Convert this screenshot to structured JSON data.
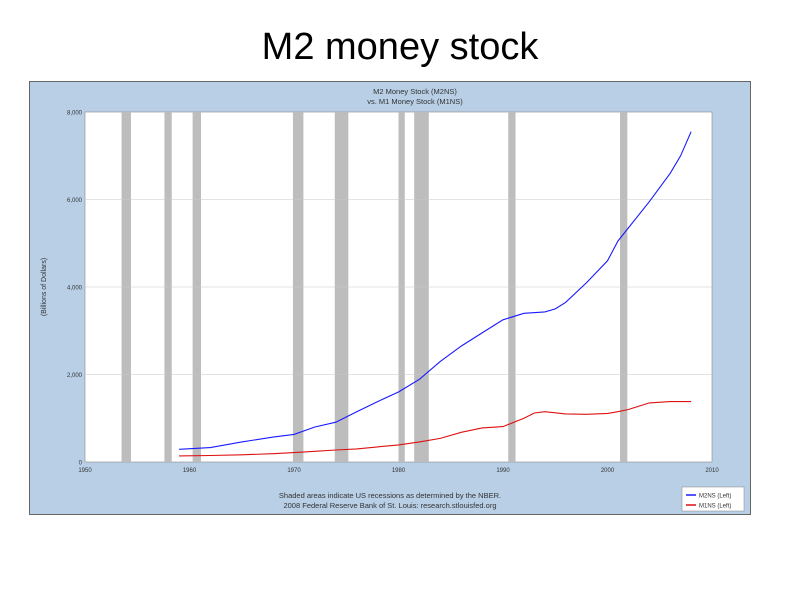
{
  "slide": {
    "title": "M2 money stock"
  },
  "chart_data": {
    "type": "line",
    "title": "M2 Money Stock (M2NS)",
    "subtitle": "vs. M1 Money Stock (M1NS)",
    "ylabel": "(Billions of Dollars)",
    "xlim": [
      1950,
      2010
    ],
    "ylim": [
      0,
      8000
    ],
    "x_ticks": [
      "1950",
      "1960",
      "1970",
      "1980",
      "1990",
      "2000",
      "2010"
    ],
    "y_ticks": [
      "8,000",
      "6,000",
      "4,000",
      "2,000",
      "0"
    ],
    "y_tick_values": [
      8000,
      6000,
      4000,
      2000,
      0
    ],
    "x_tick_values": [
      1950,
      1960,
      1970,
      1980,
      1990,
      2000,
      2010
    ],
    "recessions": [
      [
        1953.5,
        1954.4
      ],
      [
        1957.6,
        1958.3
      ],
      [
        1960.3,
        1961.1
      ],
      [
        1969.9,
        1970.9
      ],
      [
        1973.9,
        1975.2
      ],
      [
        1980.0,
        1980.6
      ],
      [
        1981.5,
        1982.9
      ],
      [
        1990.5,
        1991.2
      ],
      [
        2001.2,
        2001.9
      ]
    ],
    "series": [
      {
        "name": "M2NS (Left)",
        "color": "#1a1aff",
        "x": [
          1959,
          1962,
          1965,
          1968,
          1970,
          1972,
          1974,
          1976,
          1978,
          1980,
          1982,
          1984,
          1986,
          1988,
          1990,
          1992,
          1994,
          1995,
          1996,
          1998,
          2000,
          2001,
          2002,
          2004,
          2006,
          2007,
          2008
        ],
        "y": [
          290,
          330,
          460,
          570,
          630,
          800,
          910,
          1150,
          1380,
          1600,
          1890,
          2300,
          2650,
          2950,
          3250,
          3400,
          3430,
          3500,
          3650,
          4100,
          4600,
          5050,
          5350,
          5950,
          6600,
          7000,
          7550
        ]
      },
      {
        "name": "M1NS (Left)",
        "color": "#dd1111",
        "x": [
          1959,
          1962,
          1965,
          1968,
          1970,
          1972,
          1974,
          1976,
          1978,
          1980,
          1982,
          1984,
          1986,
          1988,
          1990,
          1992,
          1993,
          1994,
          1996,
          1998,
          2000,
          2001,
          2002,
          2004,
          2006,
          2008
        ],
        "y": [
          140,
          148,
          165,
          190,
          215,
          245,
          275,
          300,
          345,
          390,
          460,
          540,
          680,
          780,
          810,
          1000,
          1120,
          1150,
          1100,
          1090,
          1110,
          1150,
          1200,
          1350,
          1380,
          1380
        ]
      }
    ],
    "footnote_1": "Shaded areas indicate US recessions as determined by the NBER.",
    "footnote_2": "2008 Federal Reserve Bank of St. Louis: research.stlouisfed.org",
    "legend_placement": "bottom-right"
  }
}
